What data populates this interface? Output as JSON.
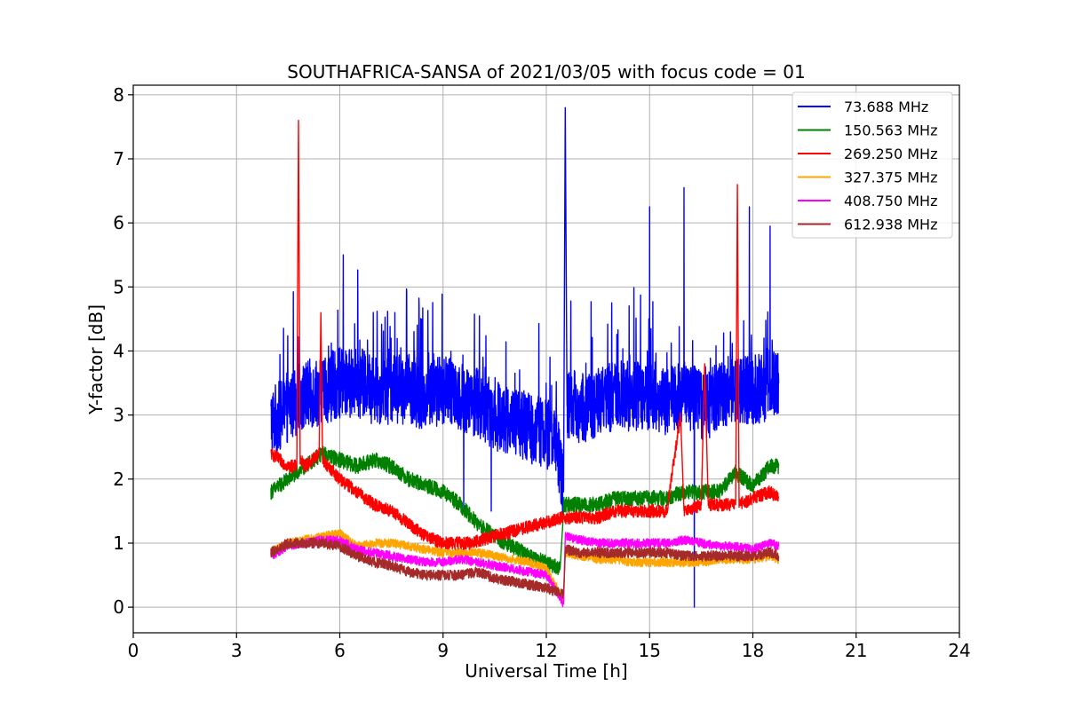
{
  "chart_data": {
    "type": "line",
    "title": "SOUTHAFRICA-SANSA of 2021/03/05 with focus code = 01",
    "xlabel": "Universal Time [h]",
    "ylabel": "Y-factor [dB]",
    "xlim": [
      0,
      24
    ],
    "ylim": [
      -0.4,
      8.15
    ],
    "xticks": [
      0,
      3,
      6,
      9,
      12,
      15,
      18,
      21,
      24
    ],
    "yticks": [
      0,
      1,
      2,
      3,
      4,
      5,
      6,
      7,
      8
    ],
    "xtick_labels": [
      "0",
      "3",
      "6",
      "9",
      "12",
      "15",
      "18",
      "21",
      "24"
    ],
    "ytick_labels": [
      "0",
      "1",
      "2",
      "3",
      "4",
      "5",
      "6",
      "7",
      "8"
    ],
    "grid": true,
    "legend_position": "top-right",
    "series": [
      {
        "name": " 73.688 MHz",
        "color": "#0000ff",
        "x": [
          4.0,
          4.3,
          4.6,
          5.0,
          5.5,
          6.0,
          6.5,
          7.0,
          7.5,
          8.0,
          8.5,
          9.0,
          9.5,
          10.0,
          10.5,
          11.0,
          11.5,
          12.0,
          12.3,
          12.5,
          12.55,
          12.6,
          13.0,
          13.5,
          14.0,
          14.5,
          15.0,
          15.5,
          16.0,
          16.3,
          16.6,
          17.0,
          17.5,
          17.9,
          18.3,
          18.5,
          18.75
        ],
        "values": [
          2.9,
          3.0,
          3.2,
          3.3,
          3.4,
          3.5,
          3.5,
          3.4,
          3.4,
          3.4,
          3.3,
          3.4,
          3.3,
          3.2,
          3.0,
          2.9,
          2.8,
          2.7,
          2.6,
          1.8,
          7.8,
          3.2,
          3.1,
          3.2,
          3.3,
          3.3,
          3.3,
          3.2,
          3.3,
          3.3,
          3.1,
          3.3,
          3.4,
          3.4,
          3.4,
          3.6,
          3.5
        ],
        "spikes": [
          [
            6.1,
            5.5
          ],
          [
            7.6,
            4.6
          ],
          [
            9.6,
            1.5
          ],
          [
            10.4,
            1.5
          ],
          [
            15.0,
            6.25
          ],
          [
            16.0,
            6.55
          ],
          [
            16.3,
            0.0
          ],
          [
            17.9,
            6.25
          ],
          [
            18.5,
            5.95
          ]
        ]
      },
      {
        "name": "150.563 MHz",
        "color": "#008000",
        "x": [
          4.0,
          4.5,
          5.0,
          5.5,
          6.0,
          6.5,
          7.0,
          7.5,
          8.0,
          8.5,
          9.0,
          9.5,
          10.0,
          10.5,
          11.0,
          11.5,
          12.0,
          12.4,
          12.5,
          13.0,
          13.5,
          14.0,
          14.5,
          15.0,
          15.5,
          16.0,
          16.5,
          17.0,
          17.5,
          18.0,
          18.5,
          18.75
        ],
        "values": [
          1.8,
          2.0,
          2.2,
          2.4,
          2.3,
          2.2,
          2.3,
          2.2,
          2.0,
          1.9,
          1.8,
          1.6,
          1.3,
          1.1,
          0.95,
          0.8,
          0.7,
          0.6,
          1.6,
          1.6,
          1.6,
          1.7,
          1.7,
          1.7,
          1.7,
          1.8,
          1.8,
          1.8,
          2.1,
          1.9,
          2.2,
          2.2
        ]
      },
      {
        "name": "269.250 MHz",
        "color": "#ff0000",
        "x": [
          4.0,
          4.5,
          4.75,
          4.8,
          4.85,
          5.0,
          5.4,
          5.45,
          5.5,
          6.0,
          6.5,
          7.0,
          7.5,
          8.0,
          8.5,
          9.0,
          9.5,
          9.75,
          12.5,
          13.0,
          13.5,
          14.0,
          14.5,
          15.0,
          15.5,
          15.9,
          16.0,
          16.5,
          16.6,
          16.7,
          17.0,
          17.5,
          17.55,
          17.6,
          18.0,
          18.5,
          18.75
        ],
        "values": [
          2.4,
          2.2,
          2.2,
          7.6,
          2.3,
          2.2,
          2.4,
          4.6,
          2.3,
          2.0,
          1.8,
          1.6,
          1.5,
          1.3,
          1.1,
          1.0,
          1.0,
          1.0,
          1.4,
          1.4,
          1.4,
          1.5,
          1.5,
          1.5,
          1.5,
          3.0,
          1.5,
          1.6,
          3.8,
          1.6,
          1.6,
          1.6,
          6.6,
          1.6,
          1.7,
          1.8,
          1.7
        ]
      },
      {
        "name": "327.375 MHz",
        "color": "#ffa500",
        "x": [
          4.0,
          4.5,
          5.0,
          5.5,
          6.0,
          6.5,
          7.0,
          7.5,
          8.0,
          8.5,
          9.0,
          9.5,
          10.0,
          10.5,
          11.0,
          11.5,
          12.0,
          12.5,
          12.55,
          13.0,
          13.5,
          14.0,
          14.5,
          15.0,
          15.5,
          16.0,
          16.5,
          17.0,
          17.5,
          18.0,
          18.5,
          18.75
        ],
        "values": [
          0.85,
          1.0,
          1.05,
          1.1,
          1.15,
          0.95,
          1.0,
          1.0,
          0.95,
          0.9,
          0.85,
          0.85,
          0.85,
          0.8,
          0.75,
          0.7,
          0.6,
          0.1,
          0.85,
          0.8,
          0.75,
          0.75,
          0.7,
          0.7,
          0.7,
          0.7,
          0.7,
          0.75,
          0.75,
          0.75,
          0.8,
          0.75
        ]
      },
      {
        "name": "408.750 MHz",
        "color": "#ff00ff",
        "x": [
          4.0,
          4.5,
          5.0,
          5.5,
          6.0,
          6.5,
          7.0,
          7.5,
          8.0,
          8.5,
          9.0,
          9.5,
          10.0,
          10.5,
          11.0,
          11.5,
          12.0,
          12.5,
          12.55,
          13.0,
          13.5,
          14.0,
          14.5,
          15.0,
          15.5,
          16.0,
          16.5,
          17.0,
          17.5,
          18.0,
          18.5,
          18.75
        ],
        "values": [
          0.8,
          0.95,
          1.0,
          1.05,
          1.05,
          0.9,
          0.85,
          0.8,
          0.75,
          0.7,
          0.7,
          0.75,
          0.7,
          0.65,
          0.6,
          0.55,
          0.5,
          0.05,
          1.1,
          1.05,
          1.0,
          1.0,
          1.0,
          1.0,
          1.0,
          1.05,
          1.0,
          0.95,
          0.95,
          0.9,
          1.0,
          0.95
        ]
      },
      {
        "name": "612.938 MHz",
        "color": "#a52a2a",
        "x": [
          4.0,
          4.5,
          5.0,
          5.5,
          6.0,
          6.5,
          7.0,
          7.5,
          8.0,
          8.5,
          9.0,
          9.5,
          10.0,
          10.5,
          11.0,
          11.5,
          12.0,
          12.5,
          12.55,
          13.0,
          13.5,
          14.0,
          14.5,
          15.0,
          15.5,
          16.0,
          16.5,
          17.0,
          17.5,
          18.0,
          18.5,
          18.75
        ],
        "values": [
          0.85,
          1.0,
          1.0,
          1.0,
          0.95,
          0.8,
          0.7,
          0.65,
          0.55,
          0.5,
          0.5,
          0.5,
          0.55,
          0.45,
          0.4,
          0.35,
          0.3,
          0.2,
          0.9,
          0.85,
          0.85,
          0.85,
          0.85,
          0.85,
          0.85,
          0.8,
          0.8,
          0.8,
          0.8,
          0.8,
          0.85,
          0.8
        ]
      }
    ]
  }
}
